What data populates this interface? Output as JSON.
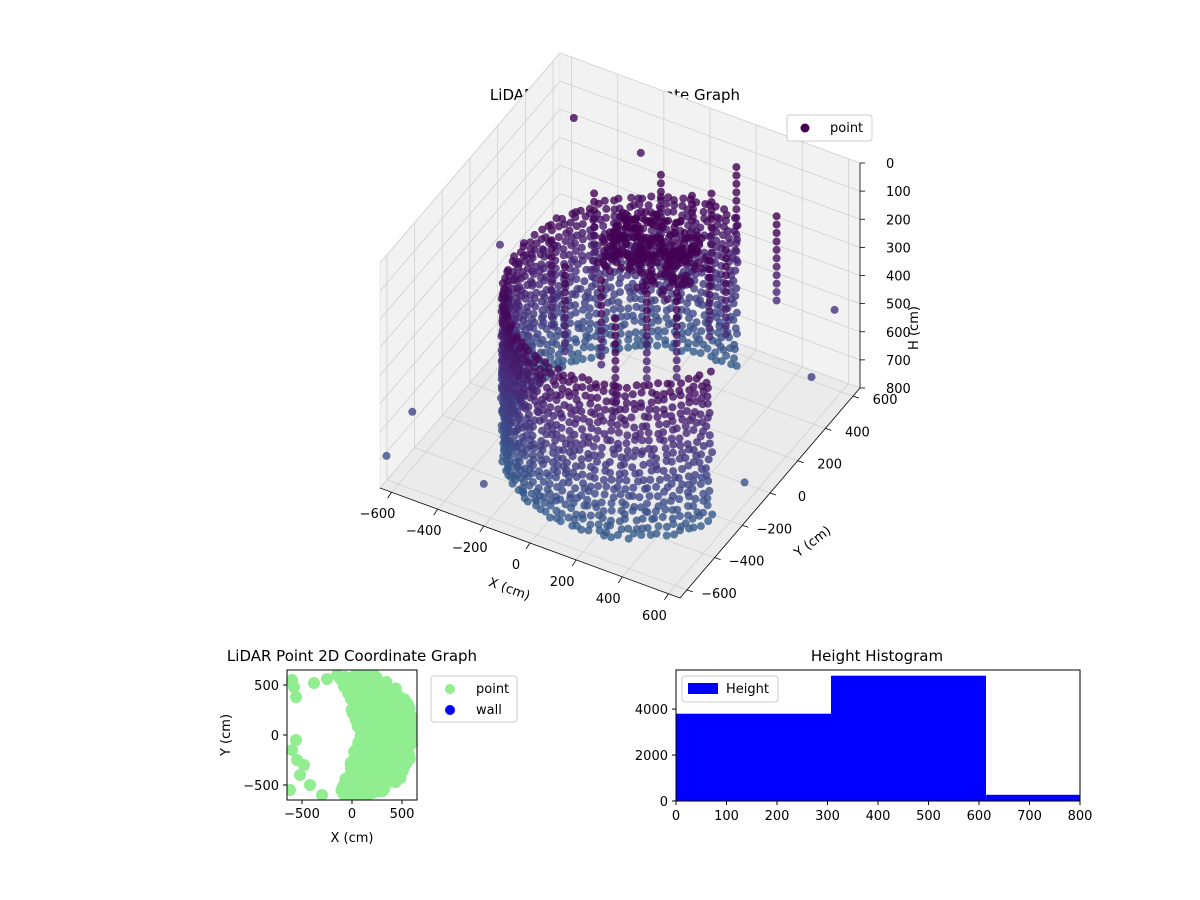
{
  "chart_data": [
    {
      "type": "scatter3d",
      "title": "LiDAR Point 3D Coordinate Graph",
      "xlabel": "X (cm)",
      "ylabel": "Y (cm)",
      "zlabel": "H (cm)",
      "xlim": [
        -650,
        650
      ],
      "ylim": [
        -650,
        650
      ],
      "zlim": [
        0,
        800
      ],
      "z_inverted": true,
      "x_ticks": [
        "−600",
        "−400",
        "−200",
        "0",
        "200",
        "400",
        "600"
      ],
      "y_ticks": [
        "−600",
        "−400",
        "−200",
        "0",
        "200",
        "400",
        "600"
      ],
      "z_ticks": [
        "0",
        "100",
        "200",
        "300",
        "400",
        "500",
        "600",
        "700",
        "800"
      ],
      "legend": [
        "point"
      ],
      "legend_position": "top-right",
      "colormap": "viridis (by height)",
      "grid": true,
      "wall": {
        "center_x": 100,
        "center_y": 0,
        "radius": 520,
        "arc_start_deg": 80,
        "arc_end_deg": 330,
        "h_min": 250,
        "h_max": 800
      },
      "series": [
        {
          "name": "point",
          "color": "#440154"
        }
      ]
    },
    {
      "type": "scatter",
      "title": "LiDAR Point 2D Coordinate Graph",
      "xlabel": "X (cm)",
      "ylabel": "Y (cm)",
      "xlim": [
        -650,
        650
      ],
      "ylim": [
        -650,
        650
      ],
      "x_ticks": [
        "−500",
        "0",
        "500"
      ],
      "y_ticks": [
        "−500",
        "0",
        "500"
      ],
      "legend": [
        "point",
        "wall"
      ],
      "legend_position": "outside-right",
      "series": [
        {
          "name": "point",
          "color": "#90ee90"
        },
        {
          "name": "wall",
          "color": "#0000ff"
        }
      ]
    },
    {
      "type": "bar",
      "title": "Height Histogram",
      "xlabel": "",
      "ylabel": "",
      "bins": [
        [
          0,
          307
        ],
        [
          307,
          614
        ],
        [
          614,
          800
        ]
      ],
      "values": [
        3800,
        5450,
        270
      ],
      "xlim": [
        0,
        800
      ],
      "ylim": [
        0,
        5700
      ],
      "x_ticks": [
        0,
        100,
        200,
        300,
        400,
        500,
        600,
        700,
        800
      ],
      "y_ticks": [
        0,
        2000,
        4000
      ],
      "legend": [
        "Height"
      ],
      "legend_position": "top-left",
      "color": "#0000ff"
    }
  ]
}
